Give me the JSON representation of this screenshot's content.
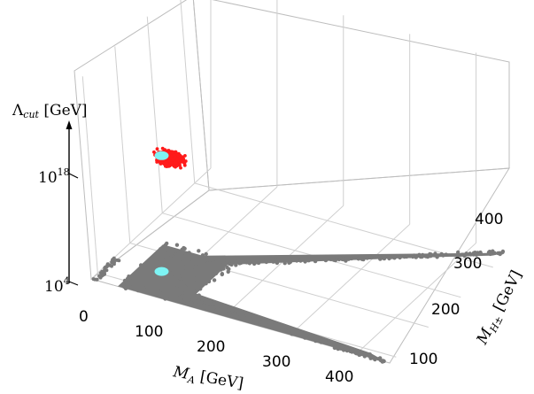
{
  "chart_data": {
    "type": "scatter",
    "projection": "3d",
    "title": "",
    "axes": {
      "x": {
        "label_main": "M",
        "label_sub": "A",
        "label_unit": " [GeV]",
        "ticks": [
          0,
          100,
          200,
          300,
          400
        ],
        "tick_labels": [
          "0",
          "100",
          "200",
          "300",
          "400"
        ],
        "range": [
          0,
          450
        ]
      },
      "y": {
        "label_main": "M",
        "label_sub": "H±",
        "label_unit": " [GeV]",
        "ticks": [
          100,
          200,
          300,
          400
        ],
        "tick_labels": [
          "100",
          "200",
          "300",
          "400"
        ],
        "range": [
          80,
          450
        ]
      },
      "z": {
        "label_main": "Λ",
        "label_sub": "cut",
        "label_unit": " [GeV]",
        "scale": "log",
        "ticks": [
          4,
          18
        ],
        "tick_labels": [
          "10",
          "10"
        ],
        "tick_exponents": [
          "4",
          "18"
        ],
        "range_log10": [
          3.3,
          33
        ]
      }
    },
    "grid": true,
    "colors": {
      "bulk": "#7a7a7a",
      "high_cutoff": "#ff1a1a",
      "benchmark": "#7df4f4"
    },
    "series": [
      {
        "color_key": "bulk",
        "regions": [
          {
            "shape": "strip",
            "x": [
              0,
              10
            ],
            "y": [
              80,
              150
            ],
            "log10_cutoff": 4
          },
          {
            "shape": "plateau",
            "x": [
              40,
              140
            ],
            "y": [
              80,
              220
            ],
            "log10_cutoff": 4
          },
          {
            "shape": "band_to_high",
            "from": [
              140,
              220
            ],
            "to": [
              445,
              445
            ],
            "log10_cutoff": 4
          },
          {
            "shape": "band_to_low",
            "from": [
              140,
              100
            ],
            "to": [
              445,
              80
            ],
            "log10_cutoff": 4
          }
        ]
      },
      {
        "color_key": "high_cutoff",
        "regions": [
          {
            "shape": "cluster",
            "x_center": 85,
            "y_center": 150,
            "log10_cutoff": 19
          }
        ]
      }
    ],
    "benchmarks": [
      {
        "color_key": "benchmark",
        "x": 72,
        "y": 150,
        "log10_cutoff": 19
      },
      {
        "color_key": "benchmark",
        "x": 72,
        "y": 150,
        "log10_cutoff": 4
      }
    ]
  }
}
